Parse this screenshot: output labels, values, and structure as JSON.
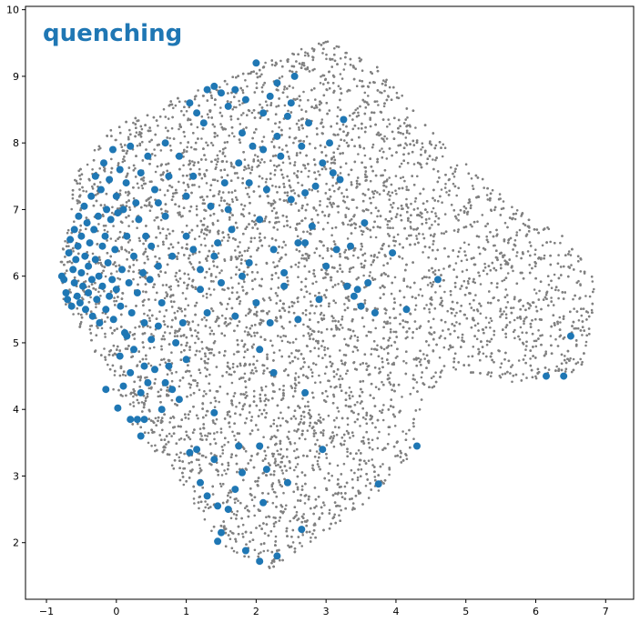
{
  "chart_data": {
    "type": "scatter",
    "title": "quenching",
    "xlabel": "",
    "ylabel": "",
    "xlim": [
      -1.3,
      7.4
    ],
    "ylim": [
      1.15,
      10.05
    ],
    "x_ticks": [
      -1,
      0,
      1,
      2,
      3,
      4,
      5,
      6,
      7
    ],
    "y_ticks": [
      2,
      3,
      4,
      5,
      6,
      7,
      8,
      9,
      10
    ],
    "grid": false,
    "legend": "none",
    "colors": {
      "background": "#808080",
      "highlight": "#1f77b4",
      "title": "#1f77b4"
    },
    "series": [
      {
        "role": "background",
        "description_points": "dense cloud of grey points",
        "region": [
          [
            -0.8,
            6.2
          ],
          [
            -0.6,
            7.5
          ],
          [
            -0.1,
            8.2
          ],
          [
            0.9,
            8.7
          ],
          [
            2.1,
            9.2
          ],
          [
            3.0,
            9.55
          ],
          [
            3.8,
            9.1
          ],
          [
            4.4,
            8.3
          ],
          [
            5.4,
            7.3
          ],
          [
            6.4,
            6.6
          ],
          [
            6.9,
            6.0
          ],
          [
            6.8,
            5.0
          ],
          [
            6.6,
            4.5
          ],
          [
            6.2,
            4.5
          ],
          [
            5.7,
            4.4
          ],
          [
            4.8,
            4.6
          ],
          [
            4.4,
            4.2
          ],
          [
            4.2,
            3.3
          ],
          [
            3.6,
            2.6
          ],
          [
            2.9,
            2.1
          ],
          [
            2.2,
            1.6
          ],
          [
            1.8,
            1.8
          ],
          [
            1.4,
            2.0
          ],
          [
            1.0,
            2.8
          ],
          [
            0.6,
            3.3
          ],
          [
            0.2,
            3.8
          ],
          [
            -0.2,
            4.6
          ],
          [
            -0.5,
            5.2
          ],
          [
            -0.8,
            5.7
          ]
        ]
      },
      {
        "role": "highlight",
        "points": [
          [
            -0.78,
            6.0
          ],
          [
            -0.75,
            5.95
          ],
          [
            -0.72,
            5.75
          ],
          [
            -0.7,
            5.65
          ],
          [
            -0.68,
            6.35
          ],
          [
            -0.66,
            6.55
          ],
          [
            -0.64,
            5.55
          ],
          [
            -0.62,
            6.1
          ],
          [
            -0.6,
            6.7
          ],
          [
            -0.6,
            5.9
          ],
          [
            -0.58,
            6.25
          ],
          [
            -0.56,
            5.7
          ],
          [
            -0.55,
            6.45
          ],
          [
            -0.54,
            6.9
          ],
          [
            -0.52,
            5.6
          ],
          [
            -0.5,
            6.05
          ],
          [
            -0.5,
            6.6
          ],
          [
            -0.48,
            5.85
          ],
          [
            -0.46,
            7.05
          ],
          [
            -0.45,
            6.3
          ],
          [
            -0.44,
            5.5
          ],
          [
            -0.42,
            6.8
          ],
          [
            -0.4,
            6.15
          ],
          [
            -0.4,
            5.75
          ],
          [
            -0.38,
            6.5
          ],
          [
            -0.36,
            7.2
          ],
          [
            -0.35,
            5.95
          ],
          [
            -0.34,
            5.4
          ],
          [
            -0.32,
            6.7
          ],
          [
            -0.3,
            6.25
          ],
          [
            -0.3,
            7.5
          ],
          [
            -0.28,
            5.65
          ],
          [
            -0.26,
            6.9
          ],
          [
            -0.25,
            6.0
          ],
          [
            -0.24,
            5.3
          ],
          [
            -0.22,
            7.3
          ],
          [
            -0.2,
            6.45
          ],
          [
            -0.2,
            5.85
          ],
          [
            -0.18,
            7.7
          ],
          [
            -0.16,
            6.6
          ],
          [
            -0.15,
            5.5
          ],
          [
            -0.14,
            7.0
          ],
          [
            -0.12,
            6.2
          ],
          [
            -0.1,
            5.7
          ],
          [
            -0.1,
            7.45
          ],
          [
            -0.08,
            6.85
          ],
          [
            -0.06,
            5.95
          ],
          [
            -0.05,
            7.9
          ],
          [
            -0.04,
            5.35
          ],
          [
            -0.02,
            6.4
          ],
          [
            0.0,
            7.2
          ],
          [
            0.0,
            5.8
          ],
          [
            0.02,
            6.95
          ],
          [
            0.05,
            7.6
          ],
          [
            0.06,
            5.55
          ],
          [
            0.08,
            6.1
          ],
          [
            0.1,
            7.0
          ],
          [
            0.12,
            5.15
          ],
          [
            0.14,
            7.4
          ],
          [
            0.15,
            6.6
          ],
          [
            0.18,
            5.9
          ],
          [
            0.2,
            7.95
          ],
          [
            0.22,
            5.45
          ],
          [
            0.25,
            6.3
          ],
          [
            0.28,
            7.1
          ],
          [
            0.3,
            5.75
          ],
          [
            0.32,
            6.85
          ],
          [
            0.35,
            7.55
          ],
          [
            0.38,
            6.05
          ],
          [
            0.4,
            5.3
          ],
          [
            0.42,
            6.6
          ],
          [
            0.45,
            7.8
          ],
          [
            0.48,
            5.95
          ],
          [
            0.5,
            6.45
          ],
          [
            0.55,
            7.3
          ],
          [
            0.6,
            6.15
          ],
          [
            0.65,
            5.6
          ],
          [
            0.7,
            6.9
          ],
          [
            0.75,
            7.5
          ],
          [
            0.8,
            6.3
          ],
          [
            -0.15,
            4.3
          ],
          [
            0.02,
            4.02
          ],
          [
            0.1,
            4.35
          ],
          [
            0.2,
            3.85
          ],
          [
            0.25,
            4.9
          ],
          [
            0.3,
            3.85
          ],
          [
            0.35,
            3.6
          ],
          [
            0.35,
            4.25
          ],
          [
            0.4,
            4.65
          ],
          [
            0.4,
            3.85
          ],
          [
            0.45,
            4.4
          ],
          [
            0.5,
            5.05
          ],
          [
            0.55,
            4.6
          ],
          [
            0.6,
            5.25
          ],
          [
            0.65,
            4.0
          ],
          [
            0.7,
            4.4
          ],
          [
            0.75,
            4.65
          ],
          [
            0.8,
            4.3
          ],
          [
            0.85,
            5.0
          ],
          [
            0.9,
            4.15
          ],
          [
            0.95,
            5.3
          ],
          [
            1.0,
            4.75
          ],
          [
            0.05,
            4.8
          ],
          [
            0.15,
            5.1
          ],
          [
            0.2,
            4.55
          ],
          [
            1.05,
            8.6
          ],
          [
            1.1,
            7.5
          ],
          [
            1.15,
            8.45
          ],
          [
            1.2,
            6.1
          ],
          [
            1.25,
            8.3
          ],
          [
            1.3,
            8.8
          ],
          [
            1.35,
            7.05
          ],
          [
            1.4,
            8.85
          ],
          [
            1.45,
            6.5
          ],
          [
            1.5,
            8.75
          ],
          [
            1.55,
            7.4
          ],
          [
            1.6,
            8.55
          ],
          [
            1.65,
            6.7
          ],
          [
            1.7,
            8.8
          ],
          [
            1.75,
            7.7
          ],
          [
            1.8,
            8.15
          ],
          [
            1.85,
            8.65
          ],
          [
            1.9,
            6.2
          ],
          [
            1.95,
            7.95
          ],
          [
            2.0,
            9.2
          ],
          [
            2.05,
            6.85
          ],
          [
            2.1,
            8.45
          ],
          [
            2.15,
            7.3
          ],
          [
            2.2,
            8.7
          ],
          [
            2.25,
            6.4
          ],
          [
            2.3,
            8.9
          ],
          [
            2.35,
            7.8
          ],
          [
            2.4,
            6.05
          ],
          [
            2.45,
            8.4
          ],
          [
            2.5,
            7.15
          ],
          [
            2.55,
            9.0
          ],
          [
            2.6,
            6.5
          ],
          [
            2.65,
            7.95
          ],
          [
            2.7,
            7.25
          ],
          [
            2.75,
            8.3
          ],
          [
            2.8,
            6.75
          ],
          [
            2.85,
            7.35
          ],
          [
            2.9,
            5.65
          ],
          [
            2.95,
            7.7
          ],
          [
            3.0,
            6.15
          ],
          [
            3.05,
            8.0
          ],
          [
            3.1,
            7.55
          ],
          [
            3.15,
            6.4
          ],
          [
            3.2,
            7.45
          ],
          [
            3.25,
            8.35
          ],
          [
            3.3,
            5.85
          ],
          [
            3.35,
            6.45
          ],
          [
            3.4,
            5.7
          ],
          [
            3.45,
            5.8
          ],
          [
            3.5,
            5.55
          ],
          [
            3.55,
            6.8
          ],
          [
            3.6,
            5.9
          ],
          [
            3.7,
            5.45
          ],
          [
            3.95,
            6.35
          ],
          [
            4.15,
            5.5
          ],
          [
            4.6,
            5.95
          ],
          [
            1.2,
            5.8
          ],
          [
            1.3,
            5.45
          ],
          [
            1.5,
            5.9
          ],
          [
            1.7,
            5.4
          ],
          [
            1.8,
            6.0
          ],
          [
            2.0,
            5.6
          ],
          [
            2.2,
            5.3
          ],
          [
            2.4,
            5.85
          ],
          [
            2.6,
            5.35
          ],
          [
            2.7,
            6.5
          ],
          [
            1.0,
            6.6
          ],
          [
            1.4,
            6.3
          ],
          [
            1.6,
            7.0
          ],
          [
            1.9,
            7.4
          ],
          [
            2.1,
            7.9
          ],
          [
            2.3,
            8.1
          ],
          [
            2.5,
            8.6
          ],
          [
            0.7,
            8.0
          ],
          [
            0.9,
            7.8
          ],
          [
            1.0,
            7.2
          ],
          [
            1.1,
            6.4
          ],
          [
            0.6,
            7.1
          ],
          [
            2.05,
            4.9
          ],
          [
            2.25,
            4.55
          ],
          [
            2.05,
            3.45
          ],
          [
            1.05,
            3.35
          ],
          [
            1.15,
            3.4
          ],
          [
            1.2,
            2.9
          ],
          [
            1.3,
            2.7
          ],
          [
            1.4,
            3.25
          ],
          [
            1.45,
            2.55
          ],
          [
            1.5,
            2.15
          ],
          [
            1.45,
            2.02
          ],
          [
            1.6,
            2.5
          ],
          [
            1.7,
            2.8
          ],
          [
            1.8,
            3.05
          ],
          [
            1.85,
            1.88
          ],
          [
            2.05,
            1.72
          ],
          [
            2.1,
            2.6
          ],
          [
            2.15,
            3.1
          ],
          [
            2.3,
            1.8
          ],
          [
            2.45,
            2.9
          ],
          [
            2.65,
            2.2
          ],
          [
            2.7,
            4.25
          ],
          [
            2.95,
            3.4
          ],
          [
            3.75,
            2.88
          ],
          [
            4.3,
            3.45
          ],
          [
            1.75,
            3.45
          ],
          [
            1.4,
            3.95
          ],
          [
            6.5,
            5.1
          ],
          [
            6.15,
            4.5
          ],
          [
            6.4,
            4.5
          ]
        ]
      }
    ]
  }
}
